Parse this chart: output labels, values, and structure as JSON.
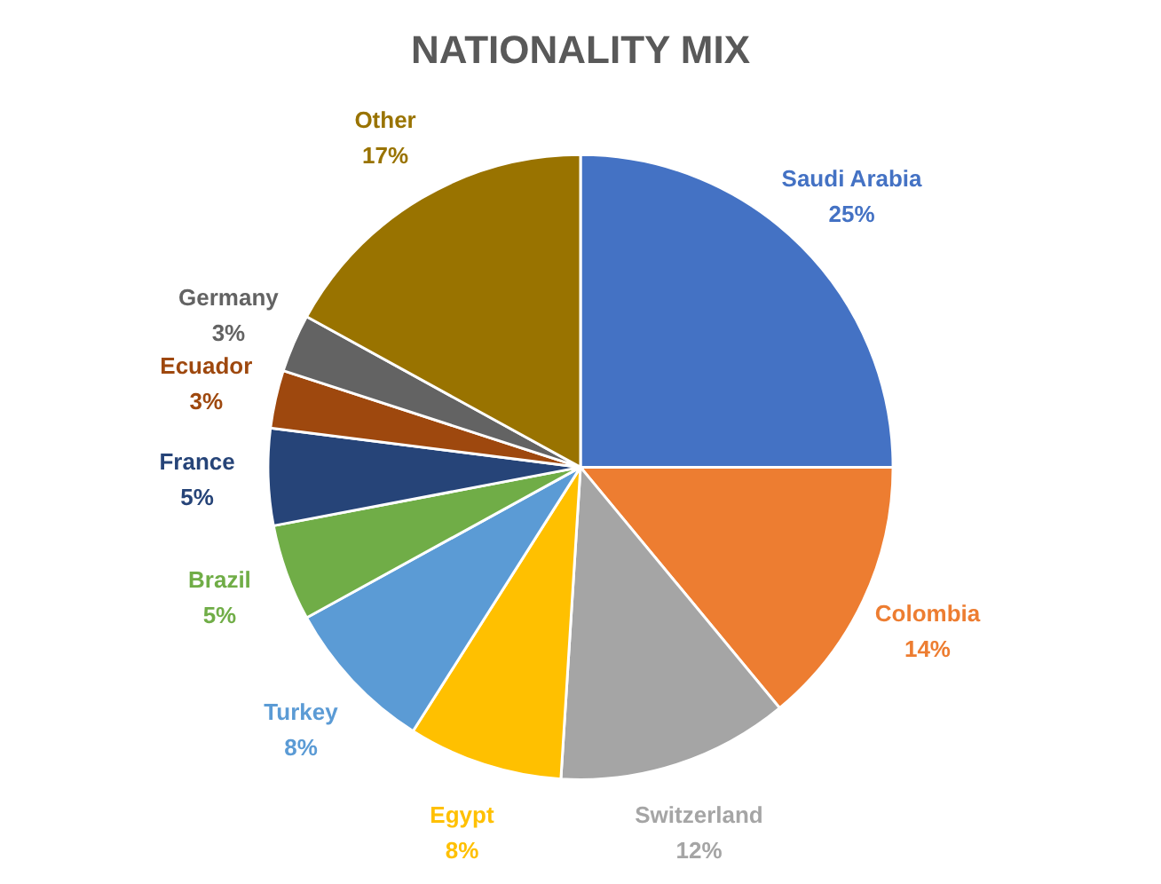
{
  "chart_data": {
    "type": "pie",
    "title": "NATIONALITY MIX",
    "categories": [
      "Saudi Arabia",
      "Colombia",
      "Switzerland",
      "Egypt",
      "Turkey",
      "Brazil",
      "France",
      "Ecuador",
      "Germany",
      "Other"
    ],
    "values": [
      25,
      14,
      12,
      8,
      8,
      5,
      5,
      3,
      3,
      17
    ],
    "value_labels": [
      "25%",
      "14%",
      "12%",
      "8%",
      "8%",
      "5%",
      "5%",
      "3%",
      "3%",
      "17%"
    ],
    "colors": [
      "#4472c4",
      "#ed7d31",
      "#a5a5a5",
      "#ffc000",
      "#5b9bd5",
      "#70ad47",
      "#264478",
      "#9e480e",
      "#636363",
      "#997300"
    ],
    "legend": false
  }
}
